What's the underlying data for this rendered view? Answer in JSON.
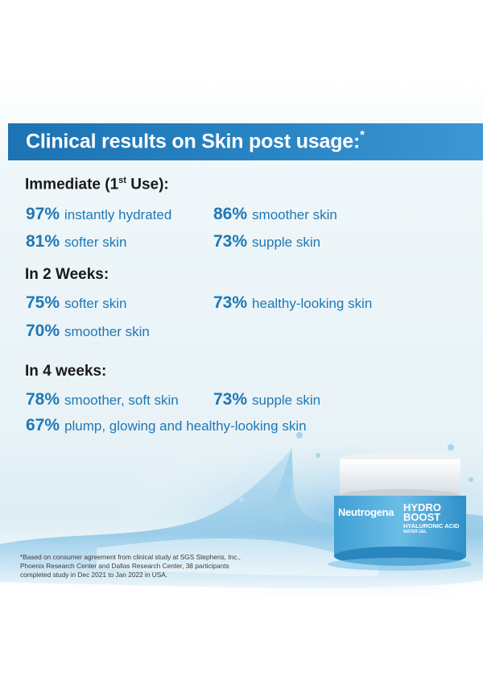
{
  "banner": {
    "title": "Clinical results on Skin post usage:",
    "mark": "*"
  },
  "sections": {
    "immediate": {
      "label": "Immediate (1",
      "sup": "st",
      "label_end": " Use):"
    },
    "week2": {
      "label": "In 2 Weeks:"
    },
    "week4": {
      "label": "In 4 weeks:"
    }
  },
  "stats": {
    "s1": {
      "pct": "97%",
      "text": "instantly hydrated"
    },
    "s2": {
      "pct": "86%",
      "text": "smoother skin"
    },
    "s3": {
      "pct": "81%",
      "text": "softer skin"
    },
    "s4": {
      "pct": "73%",
      "text": "supple skin"
    },
    "s5": {
      "pct": "75%",
      "text": "softer skin"
    },
    "s6": {
      "pct": "73%",
      "text": "healthy-looking skin"
    },
    "s7": {
      "pct": "70%",
      "text": "smoother skin"
    },
    "s8": {
      "pct": "78%",
      "text": "smoother, soft skin"
    },
    "s9": {
      "pct": "73%",
      "text": "supple skin"
    },
    "s10": {
      "pct": "67%",
      "text": "plump, glowing and healthy-looking skin"
    }
  },
  "footnote": {
    "line1": "*Based on consumer agreement from clinical study at SGS Stephens, Inc.,",
    "line2": "Phoenix Research Center and Dallas Research Center, 38 participants",
    "line3": "completed study in Dec 2021 to Jan 2022 in USA."
  },
  "product": {
    "brand": "Neutrogena",
    "name1": "HYDRO",
    "name2": "BOOST",
    "variant": "HYALURONIC ACID",
    "type": "WATER GEL"
  },
  "colors": {
    "accent": "#1f78b4",
    "banner": "#1d73b3"
  }
}
